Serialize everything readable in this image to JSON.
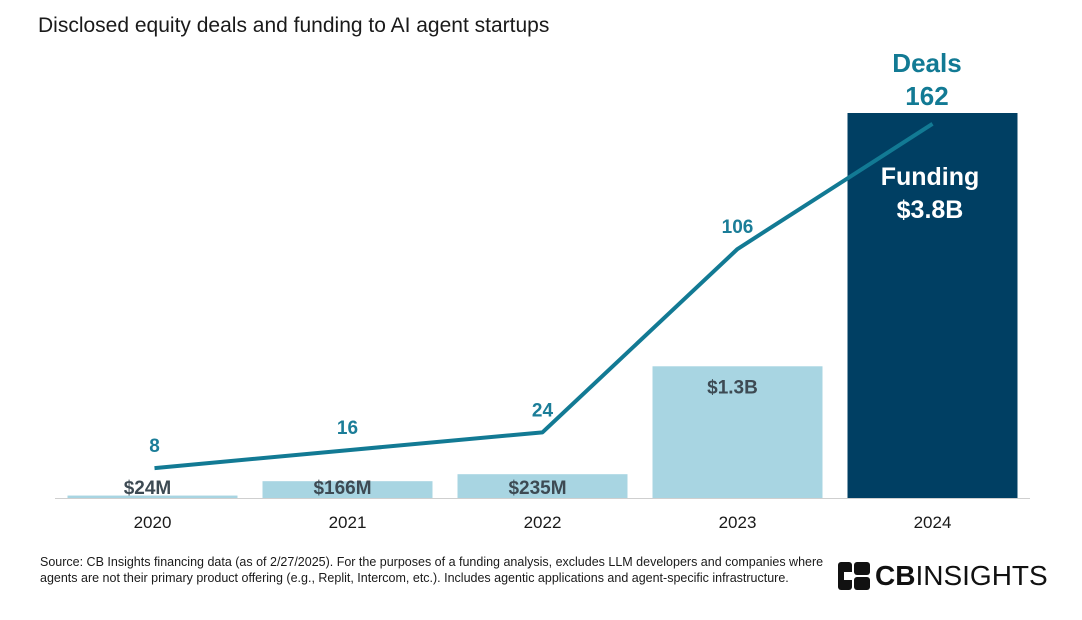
{
  "chart_data": {
    "type": "bar",
    "title": "Disclosed equity deals and funding to AI agent startups",
    "categories": [
      "2020",
      "2021",
      "2022",
      "2023",
      "2024"
    ],
    "series": [
      {
        "name": "Funding",
        "kind": "bar",
        "values_usd_millions": [
          24,
          166,
          235,
          1300,
          3800
        ],
        "labels": [
          "$24M",
          "$166M",
          "$235M",
          "$1.3B",
          "$3.8B"
        ],
        "colors": [
          "#a8d5e2",
          "#a8d5e2",
          "#a8d5e2",
          "#a8d5e2",
          "#003f63"
        ]
      },
      {
        "name": "Deals",
        "kind": "line",
        "values": [
          8,
          16,
          24,
          106,
          162
        ],
        "labels": [
          "8",
          "16",
          "24",
          "106",
          "162"
        ],
        "color": "#127a94"
      }
    ],
    "grid": false,
    "legend": "none"
  },
  "callouts": {
    "deals_title": "Deals",
    "deals_value": "162",
    "funding_title": "Funding",
    "funding_value": "$3.8B"
  },
  "footnote": "Source: CB Insights financing data (as of 2/27/2025). For the purposes of a funding analysis, excludes LLM developers and companies where agents are not their primary product offering (e.g., Replit, Intercom, etc.). Includes agentic applications and agent-specific infrastructure.",
  "logo": {
    "bold": "CB",
    "regular": "INSIGHTS"
  }
}
